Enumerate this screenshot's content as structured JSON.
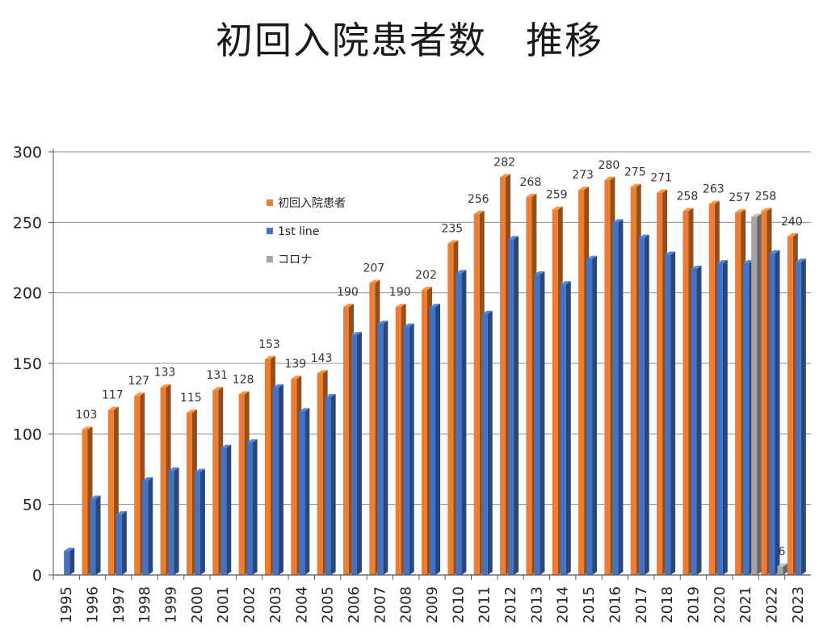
{
  "chart_data": {
    "type": "bar",
    "title": "初回入院患者数　推移",
    "categories": [
      "1995",
      "1996",
      "1997",
      "1998",
      "1999",
      "2000",
      "2001",
      "2002",
      "2003",
      "2004",
      "2005",
      "2006",
      "2007",
      "2008",
      "2009",
      "2010",
      "2011",
      "2012",
      "2013",
      "2014",
      "2015",
      "2016",
      "2017",
      "2018",
      "2019",
      "2020",
      "2021",
      "2022",
      "2023"
    ],
    "series": [
      {
        "name": "初回入院患者",
        "color": "#ED7D31",
        "values": [
          null,
          103,
          117,
          127,
          133,
          115,
          131,
          128,
          153,
          139,
          143,
          190,
          207,
          190,
          202,
          235,
          256,
          282,
          268,
          259,
          273,
          280,
          275,
          271,
          258,
          263,
          257,
          258,
          240
        ],
        "data_labels": true
      },
      {
        "name": "1st line",
        "color": "#4472C4",
        "values": [
          17,
          54,
          43,
          67,
          74,
          73,
          90,
          94,
          133,
          116,
          126,
          170,
          178,
          176,
          190,
          214,
          185,
          238,
          213,
          206,
          224,
          250,
          239,
          227,
          217,
          221,
          221,
          228,
          222
        ],
        "data_labels": false
      },
      {
        "name": "コロナ",
        "color": "#A5A5A5",
        "values": [
          null,
          null,
          null,
          null,
          null,
          null,
          null,
          null,
          null,
          null,
          null,
          null,
          null,
          null,
          null,
          null,
          null,
          null,
          null,
          null,
          null,
          null,
          null,
          null,
          null,
          null,
          254,
          6,
          null
        ],
        "data_labels": [
          null,
          null,
          null,
          null,
          null,
          null,
          null,
          null,
          null,
          null,
          null,
          null,
          null,
          null,
          null,
          null,
          null,
          null,
          null,
          null,
          null,
          null,
          null,
          null,
          null,
          null,
          null,
          6,
          null
        ]
      }
    ],
    "ylim": [
      0,
      300
    ],
    "yticks": [
      0,
      50,
      100,
      150,
      200,
      250,
      300
    ],
    "grid": true,
    "legend_position": "top-left inside plot",
    "x_tick_rotation": "vertical"
  }
}
